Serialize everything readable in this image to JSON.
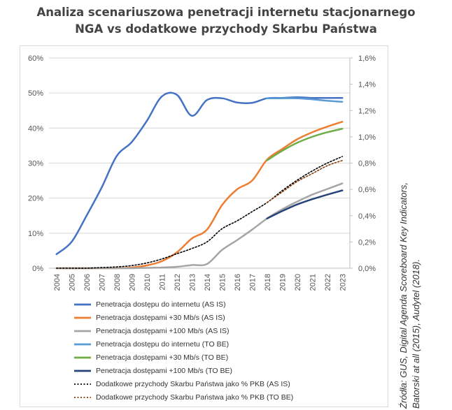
{
  "title_line1": "Analiza scenariuszowa penetracji internetu stacjonarnego",
  "title_line2": "NGA vs dodatkowe przychody Skarbu Państwa",
  "source_line1": "Źródła: GUS, Digital Agenda Scoreboard Key Indicators,",
  "source_line2": "Batorski at all (2015), Audytel (2018).",
  "chart_data": {
    "type": "line",
    "title": "Analiza scenariuszowa penetracji internetu stacjonarnego NGA vs dodatkowe przychody Skarbu Państwa",
    "x": [
      "2004",
      "2005",
      "2006",
      "2007",
      "2008",
      "2009",
      "2010",
      "2011",
      "2012",
      "2013",
      "2014",
      "2015",
      "2016",
      "2017",
      "2018",
      "2019",
      "2020",
      "2021",
      "2022",
      "2023"
    ],
    "y_left": {
      "min": 0,
      "max": 60,
      "step": 10,
      "tick_labels": [
        "0%",
        "10%",
        "20%",
        "30%",
        "40%",
        "50%",
        "60%"
      ]
    },
    "y_right": {
      "min": 0,
      "max": 1.6,
      "step": 0.2,
      "tick_labels": [
        "0,0%",
        "0,2%",
        "0,4%",
        "0,6%",
        "0,8%",
        "1,0%",
        "1,2%",
        "1,4%",
        "1,6%"
      ]
    },
    "grid": true,
    "legend_position": "bottom",
    "series": [
      {
        "name": "Penetracja dostępu do internetu (AS IS)",
        "axis": "left",
        "color": "#4472C4",
        "width": 2.5,
        "dash": "",
        "values": [
          4,
          7.5,
          15,
          23,
          32,
          36,
          42,
          49,
          49.5,
          43.5,
          48,
          48.5,
          47.3,
          47.2,
          48.5,
          48.6,
          48.8,
          48.6,
          48.6,
          48.6
        ]
      },
      {
        "name": "Penetracja dostępami +30 Mb/s (AS IS)",
        "axis": "left",
        "color": "#ED7D31",
        "width": 2.5,
        "dash": "",
        "values": [
          0,
          0,
          0,
          0,
          0,
          0.2,
          0.8,
          2,
          4.5,
          8.5,
          11,
          18,
          22.5,
          25,
          31,
          34,
          36.8,
          38.8,
          40.4,
          41.8
        ]
      },
      {
        "name": "Penetracja dostępami +100 Mb/s (AS IS)",
        "axis": "left",
        "color": "#A5A5A5",
        "width": 2.5,
        "dash": "",
        "values": [
          0,
          0,
          0,
          0,
          0,
          0,
          0.1,
          0.2,
          0.4,
          0.9,
          1.2,
          5.2,
          8,
          11,
          14.2,
          16.8,
          19,
          21,
          22.6,
          24.2
        ]
      },
      {
        "name": "Penetracja dostępu do internetu (TO BE)",
        "axis": "left",
        "color": "#5B9BD5",
        "width": 2.5,
        "dash": "",
        "values": [
          null,
          null,
          null,
          null,
          null,
          null,
          null,
          null,
          null,
          null,
          null,
          null,
          null,
          null,
          48.5,
          48.5,
          48.5,
          48.2,
          47.8,
          47.5
        ]
      },
      {
        "name": "Penetracja dostępami +30 Mb/s (TO BE)",
        "axis": "left",
        "color": "#70AD47",
        "width": 2.5,
        "dash": "",
        "values": [
          null,
          null,
          null,
          null,
          null,
          null,
          null,
          null,
          null,
          null,
          null,
          null,
          null,
          null,
          30.8,
          33.5,
          35.8,
          37.5,
          38.8,
          39.8
        ]
      },
      {
        "name": "Penetracja dostępami +100 Mb/s (TO BE)",
        "axis": "left",
        "color": "#264478",
        "width": 2.5,
        "dash": "",
        "values": [
          null,
          null,
          null,
          null,
          null,
          null,
          null,
          null,
          null,
          null,
          null,
          null,
          null,
          null,
          14.2,
          16.3,
          18.2,
          19.7,
          21,
          22.2
        ]
      },
      {
        "name": "Dodatkowe przychody Skarbu Państwa jako % PKB (AS IS)",
        "axis": "right",
        "color": "#000000",
        "width": 1.6,
        "dash": "2,2.5",
        "values": [
          0,
          0,
          0,
          0.005,
          0.01,
          0.02,
          0.04,
          0.07,
          0.11,
          0.15,
          0.2,
          0.3,
          0.36,
          0.43,
          0.5,
          0.59,
          0.67,
          0.74,
          0.8,
          0.85
        ]
      },
      {
        "name": "Dodatkowe przychody Skarbu Państwa jako % PKB (TO BE)",
        "axis": "right",
        "color": "#843C0C",
        "width": 1.6,
        "dash": "2,2.5",
        "values": [
          null,
          null,
          null,
          null,
          null,
          null,
          null,
          null,
          null,
          null,
          null,
          null,
          null,
          null,
          0.5,
          0.58,
          0.66,
          0.72,
          0.78,
          0.82
        ]
      }
    ]
  }
}
